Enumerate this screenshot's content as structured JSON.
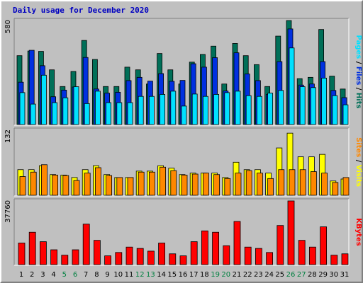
{
  "title": "Daily usage for December 2020",
  "colors": {
    "hits": "#006f58",
    "files": "#0030e0",
    "pages": "#00e0ff",
    "visits": "#ffff00",
    "sites": "#ff8800",
    "kbytes": "#ff0000",
    "weekend_label": "#008040",
    "weekday_label": "#000000",
    "panel_bg": "#c0c0c0"
  },
  "chart_data": [
    {
      "type": "bar",
      "panel": "top",
      "max_label": "580",
      "ylim": [
        0,
        580
      ],
      "categories": [
        "1",
        "2",
        "3",
        "4",
        "5",
        "6",
        "7",
        "8",
        "9",
        "10",
        "11",
        "12",
        "13",
        "14",
        "15",
        "16",
        "17",
        "18",
        "19",
        "20",
        "21",
        "22",
        "23",
        "24",
        "25",
        "26",
        "27",
        "28",
        "29",
        "30",
        "31"
      ],
      "weekend_days": [
        "5",
        "6",
        "12",
        "13",
        "19",
        "20",
        "26",
        "27"
      ],
      "series": [
        {
          "name": "Hits",
          "values": [
            384,
            410,
            408,
            305,
            212,
            296,
            469,
            363,
            212,
            212,
            320,
            305,
            226,
            396,
            305,
            226,
            348,
            391,
            437,
            226,
            452,
            384,
            334,
            212,
            493,
            580,
            256,
            263,
            530,
            270,
            198
          ]
        },
        {
          "name": "Files",
          "values": [
            236,
            414,
            328,
            155,
            192,
            209,
            374,
            198,
            175,
            180,
            245,
            263,
            242,
            284,
            241,
            246,
            339,
            320,
            373,
            187,
            400,
            282,
            245,
            168,
            351,
            533,
            220,
            226,
            351,
            190,
            150
          ]
        },
        {
          "name": "Pages",
          "values": [
            178,
            114,
            275,
            122,
            149,
            211,
            117,
            186,
            122,
            122,
            122,
            157,
            157,
            168,
            186,
            103,
            170,
            157,
            168,
            178,
            186,
            161,
            157,
            175,
            190,
            427,
            211,
            206,
            259,
            161,
            110
          ]
        }
      ]
    },
    {
      "type": "bar",
      "panel": "middle",
      "max_label": "132",
      "ylim": [
        0,
        132
      ],
      "categories": [
        "1",
        "2",
        "3",
        "4",
        "5",
        "6",
        "7",
        "8",
        "9",
        "10",
        "11",
        "12",
        "13",
        "14",
        "15",
        "16",
        "17",
        "18",
        "19",
        "20",
        "21",
        "22",
        "23",
        "24",
        "25",
        "26",
        "27",
        "28",
        "29",
        "30",
        "31"
      ],
      "series": [
        {
          "name": "Visits",
          "values": [
            52,
            52,
            60,
            42,
            41,
            36,
            52,
            60,
            42,
            36,
            36,
            49,
            49,
            60,
            55,
            42,
            45,
            45,
            45,
            36,
            67,
            52,
            52,
            45,
            96,
            126,
            78,
            78,
            83,
            29,
            33
          ]
        },
        {
          "name": "Sites",
          "values": [
            38,
            47,
            62,
            41,
            40,
            30,
            45,
            56,
            40,
            36,
            36,
            47,
            47,
            57,
            50,
            41,
            43,
            45,
            42,
            34,
            45,
            50,
            45,
            34,
            52,
            52,
            52,
            48,
            45,
            26,
            36
          ]
        }
      ]
    },
    {
      "type": "bar",
      "panel": "bottom",
      "max_label": "37760",
      "ylim": [
        0,
        37760
      ],
      "categories": [
        "1",
        "2",
        "3",
        "4",
        "5",
        "6",
        "7",
        "8",
        "9",
        "10",
        "11",
        "12",
        "13",
        "14",
        "15",
        "16",
        "17",
        "18",
        "19",
        "20",
        "21",
        "22",
        "23",
        "24",
        "25",
        "26",
        "27",
        "28",
        "29",
        "30",
        "31"
      ],
      "series": [
        {
          "name": "KBytes",
          "values": [
            12800,
            19200,
            13600,
            8800,
            5600,
            8800,
            24000,
            14400,
            5200,
            7200,
            10400,
            9600,
            8000,
            12800,
            6400,
            5200,
            13600,
            20000,
            19200,
            11200,
            25600,
            10400,
            9600,
            7200,
            23200,
            37760,
            14400,
            10400,
            22400,
            5600,
            6400
          ]
        }
      ]
    }
  ],
  "legend": {
    "top": [
      "Hits",
      "Files",
      "Pages"
    ],
    "middle": [
      "Visits",
      "Sites"
    ],
    "bottom": [
      "KBytes"
    ]
  }
}
